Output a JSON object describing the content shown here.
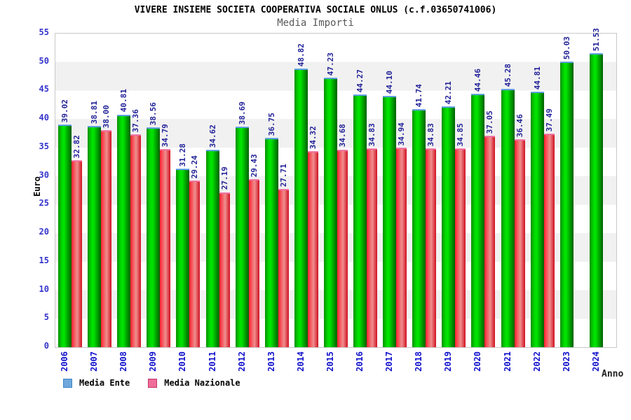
{
  "header": {
    "title": "VIVERE INSIEME SOCIETA COOPERATIVA SOCIALE ONLUS (c.f.03650741006)",
    "subtitle": "Media Importi"
  },
  "axes": {
    "y_label": "Euro",
    "x_label": "Anno",
    "y_ticks": [
      0,
      5,
      10,
      15,
      20,
      25,
      30,
      35,
      40,
      45,
      50,
      55
    ],
    "y_max": 55
  },
  "legend": {
    "items": [
      {
        "label": "Media Ente",
        "swatch_fill": "#6fa8dc",
        "swatch_border": "#3d85c6"
      },
      {
        "label": "Media Nazionale",
        "swatch_fill": "#f06c99",
        "swatch_border": "#c0356b"
      }
    ]
  },
  "colors": {
    "bar_ente_main": "#00c000",
    "bar_ente_cap": "#5f9fe0",
    "bar_naz_main": "#e04040",
    "bar_naz_cap": "#f070a0",
    "value_label": "#222299",
    "tick_label": "#3333cc",
    "year_label": "#1111cc",
    "band_gray": "#f1f1f1"
  },
  "chart_data": {
    "type": "bar",
    "title": "Media Importi",
    "xlabel": "Anno",
    "ylabel": "Euro",
    "ylim": [
      0,
      55
    ],
    "grid": "horizontal-bands",
    "legend_position": "bottom-left",
    "categories": [
      "2006",
      "2007",
      "2008",
      "2009",
      "2010",
      "2011",
      "2012",
      "2013",
      "2014",
      "2015",
      "2016",
      "2017",
      "2018",
      "2019",
      "2020",
      "2021",
      "2022",
      "2023",
      "2024"
    ],
    "series": [
      {
        "name": "Media Ente",
        "values": [
          39.02,
          38.81,
          40.81,
          38.56,
          31.28,
          34.62,
          38.69,
          36.75,
          48.82,
          47.23,
          44.27,
          44.1,
          41.74,
          42.21,
          44.46,
          45.28,
          44.81,
          50.03,
          51.53
        ]
      },
      {
        "name": "Media Nazionale",
        "values": [
          32.82,
          38.0,
          37.36,
          34.79,
          29.24,
          27.19,
          29.43,
          27.71,
          34.32,
          34.68,
          34.83,
          34.94,
          34.83,
          34.85,
          37.05,
          36.46,
          37.49,
          null,
          null
        ]
      }
    ]
  }
}
